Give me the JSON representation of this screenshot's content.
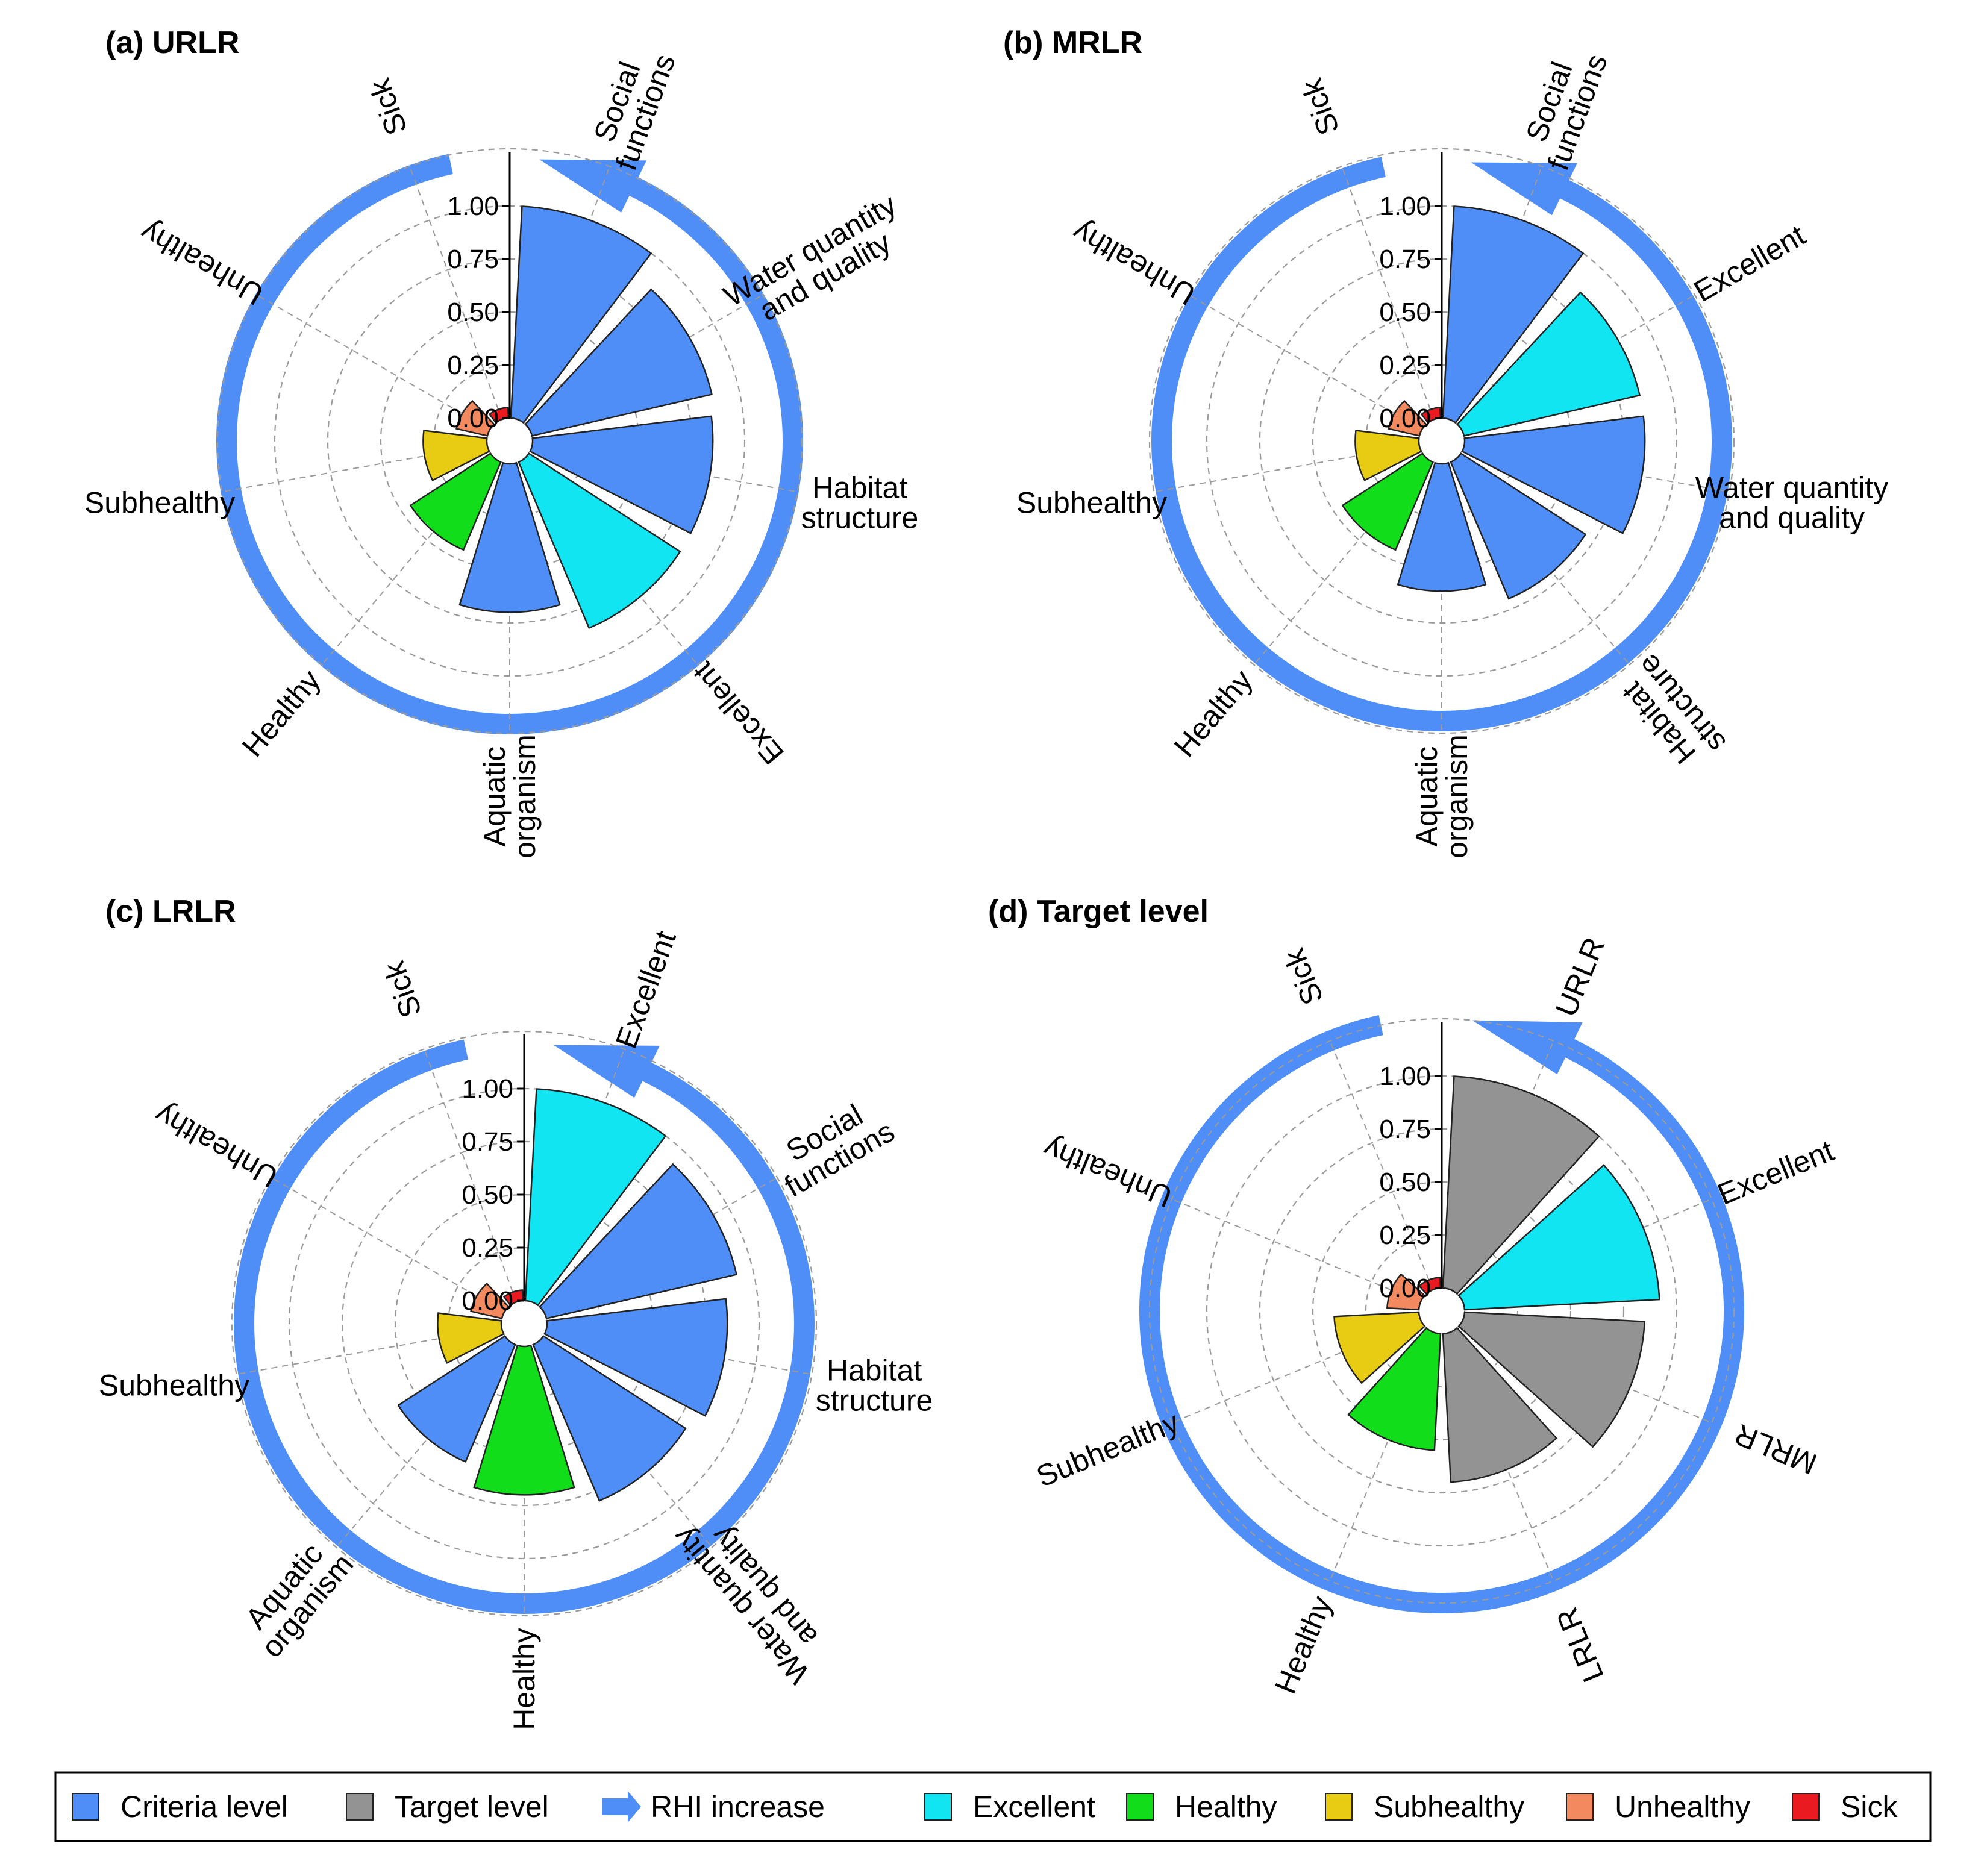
{
  "colors": {
    "criteria": "#4f8ef7",
    "target": "#939393",
    "excellent": "#12e5f2",
    "healthy": "#12dd1b",
    "subhealthy": "#e8cc13",
    "unhealthy": "#f2895f",
    "sick": "#ea1a21",
    "arrow": "#4f8ef7"
  },
  "legend": {
    "items": [
      {
        "label": "Criteria level",
        "key": "criteria",
        "icon": "square-swatch"
      },
      {
        "label": "Target level",
        "key": "target",
        "icon": "square-swatch"
      },
      {
        "label": "RHI increase",
        "key": "arrow",
        "icon": "arrow-icon"
      },
      {
        "label": "Excellent",
        "key": "excellent",
        "icon": "square-swatch"
      },
      {
        "label": "Healthy",
        "key": "healthy",
        "icon": "square-swatch"
      },
      {
        "label": "Subhealthy",
        "key": "subhealthy",
        "icon": "square-swatch"
      },
      {
        "label": "Unhealthy",
        "key": "unhealthy",
        "icon": "square-swatch"
      },
      {
        "label": "Sick",
        "key": "sick",
        "icon": "square-swatch"
      }
    ]
  },
  "chart_data": [
    {
      "type": "polar-bar",
      "title": "(a) URLR",
      "radial_ticks": [
        "0.00",
        "0.25",
        "0.50",
        "0.75",
        "1.00"
      ],
      "rlim": [
        0,
        1.25
      ],
      "bars": [
        {
          "label": "Social functions",
          "value": 1.0,
          "class": "criteria"
        },
        {
          "label": "Water quantity and quality",
          "value": 0.87,
          "class": "criteria"
        },
        {
          "label": "Habitat structure",
          "value": 0.85,
          "class": "criteria"
        },
        {
          "label": "Excellent",
          "value": 0.85,
          "class": "excellent"
        },
        {
          "label": "Aquatic organism",
          "value": 0.7,
          "class": "criteria"
        },
        {
          "label": "Healthy",
          "value": 0.45,
          "class": "healthy"
        },
        {
          "label": "Subhealthy",
          "value": 0.3,
          "class": "subhealthy"
        },
        {
          "label": "Unhealthy",
          "value": 0.15,
          "class": "unhealthy"
        },
        {
          "label": "Sick",
          "value": 0.05,
          "class": "sick"
        }
      ],
      "labels": [
        [
          "Social",
          "functions"
        ],
        [
          "Water quantity",
          "and quality"
        ],
        [
          "Habitat",
          "structure"
        ],
        [
          "Excellent"
        ],
        [
          "Aquatic",
          "organism"
        ],
        [
          "Healthy"
        ],
        [
          "Subhealthy"
        ],
        [
          "Unhealthy"
        ],
        [
          "Sick"
        ]
      ]
    },
    {
      "type": "polar-bar",
      "title": "(b) MRLR",
      "radial_ticks": [
        "0.00",
        "0.25",
        "0.50",
        "0.75",
        "1.00"
      ],
      "rlim": [
        0,
        1.25
      ],
      "bars": [
        {
          "label": "Social functions",
          "value": 1.0,
          "class": "criteria"
        },
        {
          "label": "Excellent",
          "value": 0.85,
          "class": "excellent"
        },
        {
          "label": "Water quantity and quality",
          "value": 0.85,
          "class": "criteria"
        },
        {
          "label": "Habitat structure",
          "value": 0.7,
          "class": "criteria"
        },
        {
          "label": "Aquatic organism",
          "value": 0.6,
          "class": "criteria"
        },
        {
          "label": "Healthy",
          "value": 0.45,
          "class": "healthy"
        },
        {
          "label": "Subhealthy",
          "value": 0.3,
          "class": "subhealthy"
        },
        {
          "label": "Unhealthy",
          "value": 0.15,
          "class": "unhealthy"
        },
        {
          "label": "Sick",
          "value": 0.05,
          "class": "sick"
        }
      ],
      "labels": [
        [
          "Social",
          "functions"
        ],
        [
          "Excellent"
        ],
        [
          "Water quantity",
          "and quality"
        ],
        [
          "Habitat",
          "structure"
        ],
        [
          "Aquatic",
          "organism"
        ],
        [
          "Healthy"
        ],
        [
          "Subhealthy"
        ],
        [
          "Unhealthy"
        ],
        [
          "Sick"
        ]
      ]
    },
    {
      "type": "polar-bar",
      "title": "(c) LRLR",
      "radial_ticks": [
        "0.00",
        "0.25",
        "0.50",
        "0.75",
        "1.00"
      ],
      "rlim": [
        0,
        1.25
      ],
      "bars": [
        {
          "label": "Excellent",
          "value": 1.0,
          "class": "excellent"
        },
        {
          "label": "Social functions",
          "value": 0.92,
          "class": "criteria"
        },
        {
          "label": "Habitat structure",
          "value": 0.85,
          "class": "criteria"
        },
        {
          "label": "Water quantity and quality",
          "value": 0.8,
          "class": "criteria"
        },
        {
          "label": "Healthy",
          "value": 0.7,
          "class": "healthy"
        },
        {
          "label": "Aquatic organism",
          "value": 0.6,
          "class": "criteria"
        },
        {
          "label": "Subhealthy",
          "value": 0.3,
          "class": "subhealthy"
        },
        {
          "label": "Unhealthy",
          "value": 0.15,
          "class": "unhealthy"
        },
        {
          "label": "Sick",
          "value": 0.05,
          "class": "sick"
        }
      ],
      "labels": [
        [
          "Excellent"
        ],
        [
          "Social",
          "functions"
        ],
        [
          "Habitat",
          "structure"
        ],
        [
          "Water quantity",
          "and quality"
        ],
        [
          "Healthy"
        ],
        [
          "Aquatic",
          "organism"
        ],
        [
          "Subhealthy"
        ],
        [
          "Unhealthy"
        ],
        [
          "Sick"
        ]
      ]
    },
    {
      "type": "polar-bar",
      "title": "(d) Target level",
      "radial_ticks": [
        "0.00",
        "0.25",
        "0.50",
        "0.75",
        "1.00"
      ],
      "rlim": [
        0,
        1.25
      ],
      "bars": [
        {
          "label": "URLR",
          "value": 1.0,
          "class": "target"
        },
        {
          "label": "Excellent",
          "value": 0.92,
          "class": "excellent"
        },
        {
          "label": "MRLR",
          "value": 0.85,
          "class": "target"
        },
        {
          "label": "LRLR",
          "value": 0.7,
          "class": "target"
        },
        {
          "label": "Healthy",
          "value": 0.55,
          "class": "healthy"
        },
        {
          "label": "Subhealthy",
          "value": 0.4,
          "class": "subhealthy"
        },
        {
          "label": "Unhealthy",
          "value": 0.15,
          "class": "unhealthy"
        },
        {
          "label": "Sick",
          "value": 0.05,
          "class": "sick"
        }
      ],
      "labels": [
        [
          "URLR"
        ],
        [
          "Excellent"
        ],
        [
          "MRLR"
        ],
        [
          "LRLR"
        ],
        [
          "Healthy"
        ],
        [
          "Subhealthy"
        ],
        [
          "Unhealthy"
        ],
        [
          "Sick"
        ]
      ]
    }
  ]
}
